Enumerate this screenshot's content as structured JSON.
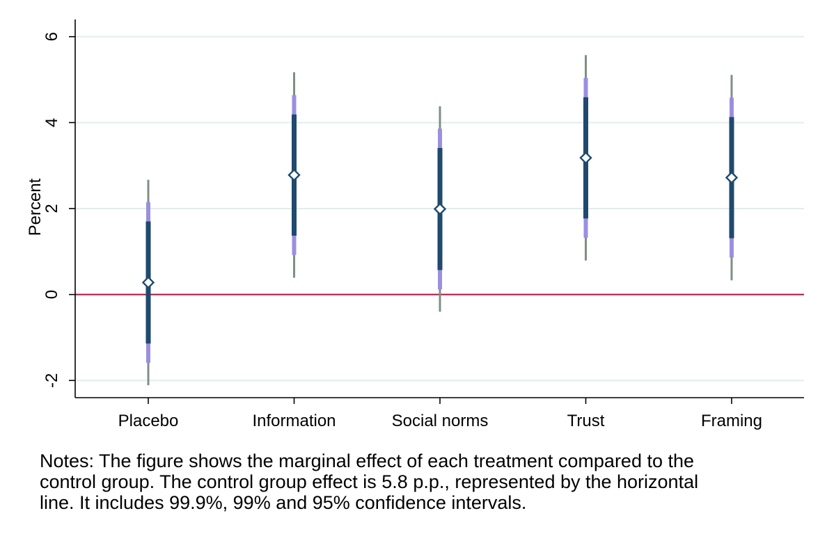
{
  "chart_data": {
    "type": "scatter",
    "title": "",
    "xlabel": "",
    "ylabel": "Percent",
    "ylim": [
      -2.4,
      6.4
    ],
    "yticks": [
      -2,
      0,
      2,
      4,
      6
    ],
    "ytick_labels": [
      "-2",
      "0",
      "2",
      "4",
      "6"
    ],
    "grid": true,
    "reference_line": {
      "y": 0,
      "color": "#b0103a"
    },
    "categories": [
      "Placebo",
      "Information",
      "Social norms",
      "Trust",
      "Framing"
    ],
    "estimates": [
      0.28,
      2.78,
      1.99,
      3.18,
      2.72
    ],
    "ci_95": [
      [
        -1.14,
        1.7
      ],
      [
        1.37,
        4.19
      ],
      [
        0.57,
        3.41
      ],
      [
        1.77,
        4.59
      ],
      [
        1.31,
        4.13
      ]
    ],
    "ci_99": [
      [
        -1.59,
        2.15
      ],
      [
        0.92,
        4.64
      ],
      [
        0.12,
        3.86
      ],
      [
        1.32,
        5.04
      ],
      [
        0.86,
        4.58
      ]
    ],
    "ci_999": [
      [
        -2.11,
        2.67
      ],
      [
        0.39,
        5.17
      ],
      [
        -0.4,
        4.38
      ],
      [
        0.79,
        5.57
      ],
      [
        0.33,
        5.11
      ]
    ],
    "colors": {
      "ci_95": "#1f4a6e",
      "ci_99": "#9b8fe0",
      "ci_999": "#7d9083",
      "grid": "#e4ecec",
      "axis": "#000000",
      "marker_fill": "#ffffff",
      "marker_stroke": "#1f4a6e"
    }
  },
  "notes": [
    "Notes: The figure shows the marginal effect of each treatment compared to the",
    "control group. The control group effect is 5.8 p.p., represented by the horizontal",
    "line. It includes 99.9%, 99% and 95% confidence intervals."
  ]
}
